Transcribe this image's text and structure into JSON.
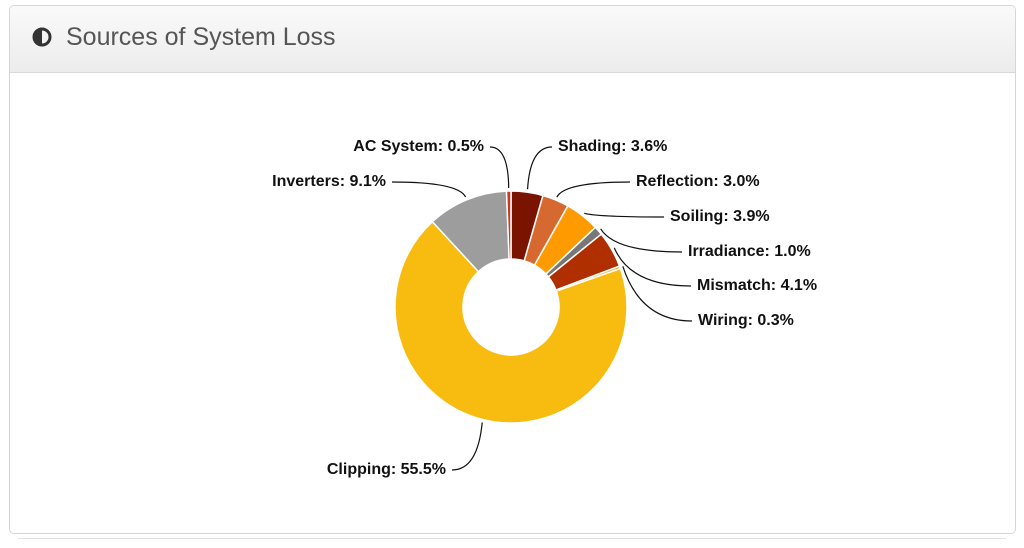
{
  "header": {
    "title": "Sources of System Loss"
  },
  "chart_data": {
    "type": "donut",
    "values": [
      3.6,
      3.0,
      3.9,
      1.0,
      4.1,
      0.3,
      55.5,
      9.1,
      0.5
    ],
    "value_labels": [
      "Shading: 3.6%",
      "Reflection: 3.0%",
      "Soiling: 3.9%",
      "Irradiance: 1.0%",
      "Mismatch: 4.1%",
      "Wiring: 0.3%",
      "Clipping: 55.5%",
      "Inverters: 9.1%",
      "AC System: 0.5%"
    ],
    "colors": [
      "#7a1300",
      "#d6692f",
      "#ff9a00",
      "#777777",
      "#b02f00",
      "#f7b34a",
      "#f8bb0f",
      "#9d9d9d",
      "#c0392b"
    ]
  }
}
